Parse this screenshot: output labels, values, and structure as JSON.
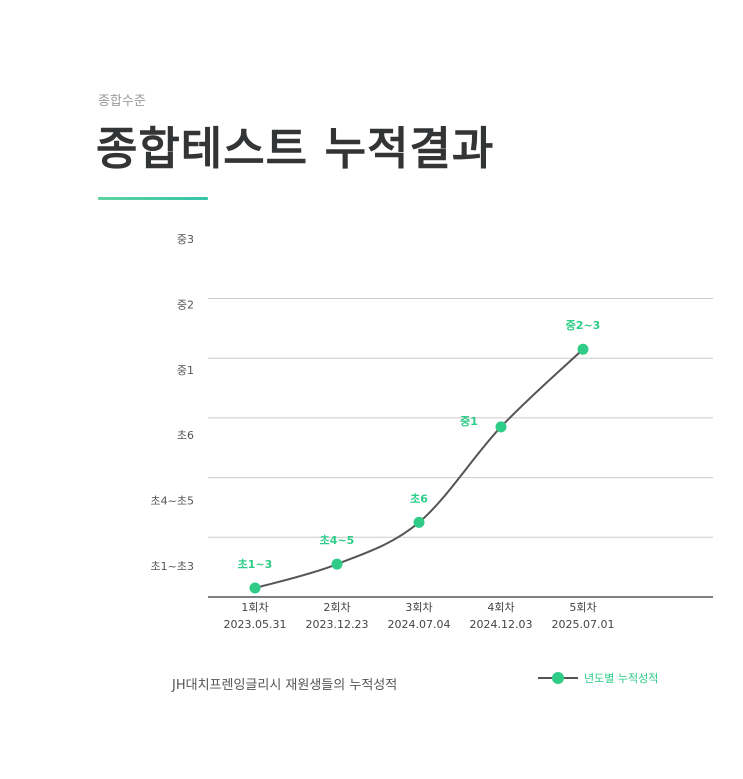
{
  "header": {
    "subtitle": "종합수준",
    "title": "종합테스트 누적결과"
  },
  "footnote": "JH대치프렌잉글리시 재원생들의 누적성적",
  "legend": {
    "label": "년도별 누적성적"
  },
  "colors": {
    "accent": "#2ecc87",
    "line": "#555555",
    "grid": "#cccccc",
    "axis": "#555555"
  },
  "chart_data": {
    "type": "line",
    "title": "종합테스트 누적결과",
    "y_levels": [
      "초1~초3",
      "초4~초5",
      "초6",
      "중1",
      "중2",
      "중3"
    ],
    "categories": [
      "1회차\n2023.05.31",
      "2회차\n2023.12.23",
      "3회차\n2024.07.04",
      "4회차\n2024.12.03",
      "5회차\n2025.07.01"
    ],
    "x_labels": [
      {
        "round": "1회차",
        "date": "2023.05.31"
      },
      {
        "round": "2회차",
        "date": "2023.12.23"
      },
      {
        "round": "3회차",
        "date": "2024.07.04"
      },
      {
        "round": "4회차",
        "date": "2024.12.03"
      },
      {
        "round": "5회차",
        "date": "2025.07.01"
      }
    ],
    "series": [
      {
        "name": "년도별 누적성적",
        "values": [
          0.15,
          0.55,
          1.25,
          2.85,
          4.15
        ],
        "labels": [
          "초1~3",
          "초4~5",
          "초6",
          "중1",
          "중2~3"
        ]
      }
    ],
    "ylim": [
      0,
      5
    ],
    "grid": true,
    "legend_position": "bottom-right"
  }
}
